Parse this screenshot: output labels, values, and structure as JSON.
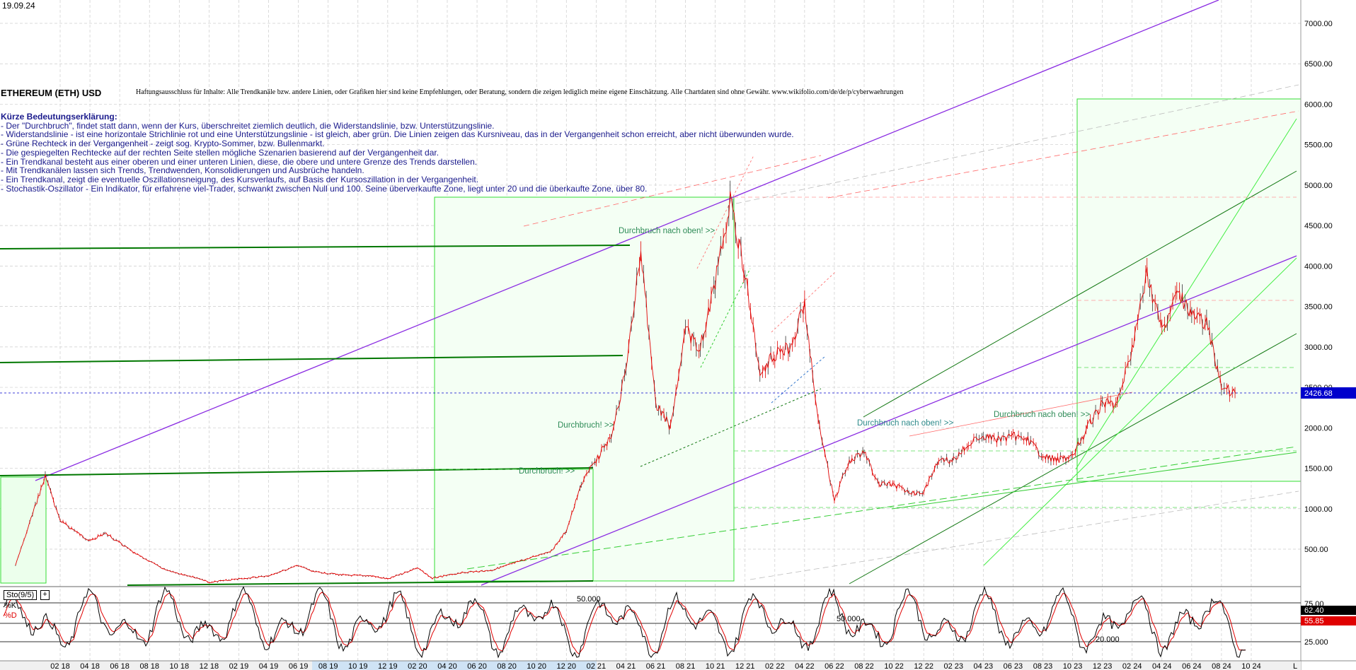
{
  "header": {
    "date": "19.09.24",
    "title": "ETHEREUM (ETH) USD",
    "disclaimer": "Haftungsausschluss für Inhalte: Alle Trendkanäle bzw. andere Linien, oder Grafiken hier sind keine Empfehlungen, oder Beratung, sondern die zeigen lediglich meine eigene Einschätzung. Alle Chartdaten sind ohne Gewähr. www.wikifolio.com/de/de/p/cyberwaehrungen"
  },
  "legend": {
    "heading": "Kürze Bedeutungserklärung:",
    "lines": [
      "- Der \"Durchbruch\", findet statt dann, wenn der Kurs, überschreitet ziemlich deutlich, die Widerstandslinie, bzw. Unterstützungslinie.",
      "- Widerstandslinie - ist eine horizontale Strichlinie rot und eine Unterstützungslinie - ist gleich, aber grün. Die Linien zeigen das Kursniveau, das in der Vergangenheit schon erreicht, aber nicht überwunden wurde.",
      "- Grüne Rechteck in der Vergangenheit - zeigt sog. Krypto-Sommer, bzw. Bullenmarkt.",
      "- Die gespiegelten Rechtecke auf der rechten Seite stellen mögliche Szenarien basierend auf der Vergangenheit dar.",
      "- Ein Trendkanal besteht aus einer oberen und einer unteren Linien, diese, die obere und untere Grenze des Trends darstellen.",
      "- Mit Trendkanälen lassen sich Trends, Trendwenden, Konsolidierungen und Ausbrüche handeln.",
      "- Ein Trendkanal, zeigt die eventuelle Oszillationsneigung, des Kursverlaufs, auf Basis der Kursoszillation in der Vergangenheit.",
      "- Stochastik-Oszillator - Ein Indikator, für erfahrene viel-Trader, schwankt zwischen Null und 100. Seine überverkaufte Zone, liegt unter 20 und die überkaufte Zone, über 80."
    ]
  },
  "annotations": {
    "breakout_up_2021": "Durchbruch nach oben! >>",
    "breakout_2021a": "Durchbruch! >>",
    "breakout_2020": "Durchbruch! >>",
    "breakout_up_2022": "Durchbruch nach oben! >>",
    "breakout_up_2023": "Durchbruch nach oben! >>"
  },
  "indicator": {
    "name": "Sto(9/5)",
    "plus": "+",
    "k_label": "%K",
    "d_label": "%D",
    "k_value": "62.40",
    "d_value": "55.85",
    "levels": [
      "75.00",
      "50.000",
      "50.000",
      "20.000",
      "25.000"
    ]
  },
  "colors": {
    "price_up": "#000000",
    "price_down": "#e00000",
    "green_zone": "#33dd33",
    "trend_purple": "#8a2be2",
    "last_price_bg": "#0000cc",
    "d_value_bg": "#e00000",
    "legend_text": "#1a1a8c"
  },
  "chart_data": {
    "type": "line",
    "title": "ETHEREUM (ETH) USD",
    "last_price_label": "2426.68",
    "y_ticks": [
      "7000.00",
      "6500.00",
      "6000.00",
      "5500.00",
      "5000.00",
      "4500.00",
      "4000.00",
      "3500.00",
      "3000.00",
      "2500.00",
      "2000.00",
      "1500.00",
      "1000.00",
      "500.00"
    ],
    "x_ticks": [
      "02 18",
      "04 18",
      "06 18",
      "08 18",
      "10 18",
      "12 18",
      "02 19",
      "04 19",
      "06 19",
      "08 19",
      "10 19",
      "12 19",
      "02 20",
      "04 20",
      "06 20",
      "08 20",
      "10 20",
      "12 20",
      "02 21",
      "04 21",
      "06 21",
      "08 21",
      "10 21",
      "12 21",
      "02 22",
      "04 22",
      "06 22",
      "08 22",
      "10 22",
      "12 22",
      "02 23",
      "04 23",
      "06 23",
      "08 23",
      "10 23",
      "12 23",
      "02 24",
      "04 24",
      "06 24",
      "08 24",
      "10 24"
    ],
    "x_end_marker": "L",
    "ylim": [
      0,
      7300
    ],
    "series": [
      {
        "x": [
          "2017-11",
          "2018-01",
          "2018-02",
          "2018-04",
          "2018-05",
          "2018-07",
          "2018-09",
          "2018-11",
          "2018-12",
          "2019-02",
          "2019-04",
          "2019-06",
          "2019-07",
          "2019-09",
          "2019-11",
          "2019-12",
          "2020-02",
          "2020-03",
          "2020-05",
          "2020-07",
          "2020-09",
          "2020-11",
          "2020-12",
          "2021-01",
          "2021-02",
          "2021-03",
          "2021-04",
          "2021-05",
          "2021-06",
          "2021-07",
          "2021-08",
          "2021-09",
          "2021-10",
          "2021-11",
          "2021-12",
          "2022-01",
          "2022-02",
          "2022-03",
          "2022-04",
          "2022-05",
          "2022-06",
          "2022-07",
          "2022-08",
          "2022-09",
          "2022-10",
          "2022-11",
          "2022-12",
          "2023-01",
          "2023-02",
          "2023-03",
          "2023-04",
          "2023-05",
          "2023-06",
          "2023-07",
          "2023-08",
          "2023-09",
          "2023-10",
          "2023-11",
          "2023-12",
          "2024-01",
          "2024-02",
          "2024-03",
          "2024-04",
          "2024-05",
          "2024-06",
          "2024-07",
          "2024-08",
          "2024-09"
        ],
        "values": [
          300,
          1400,
          850,
          600,
          700,
          450,
          250,
          150,
          90,
          130,
          170,
          300,
          220,
          180,
          170,
          130,
          270,
          140,
          210,
          240,
          360,
          480,
          730,
          1300,
          1600,
          1900,
          2700,
          4200,
          2300,
          2000,
          3200,
          3000,
          3800,
          4800,
          3900,
          2700,
          2900,
          3000,
          3500,
          2000,
          1100,
          1600,
          1700,
          1300,
          1300,
          1200,
          1200,
          1600,
          1600,
          1800,
          1900,
          1850,
          1900,
          1850,
          1650,
          1600,
          1650,
          2000,
          2300,
          2300,
          3000,
          3900,
          3200,
          3700,
          3400,
          3300,
          2500,
          2426.68
        ]
      }
    ]
  }
}
